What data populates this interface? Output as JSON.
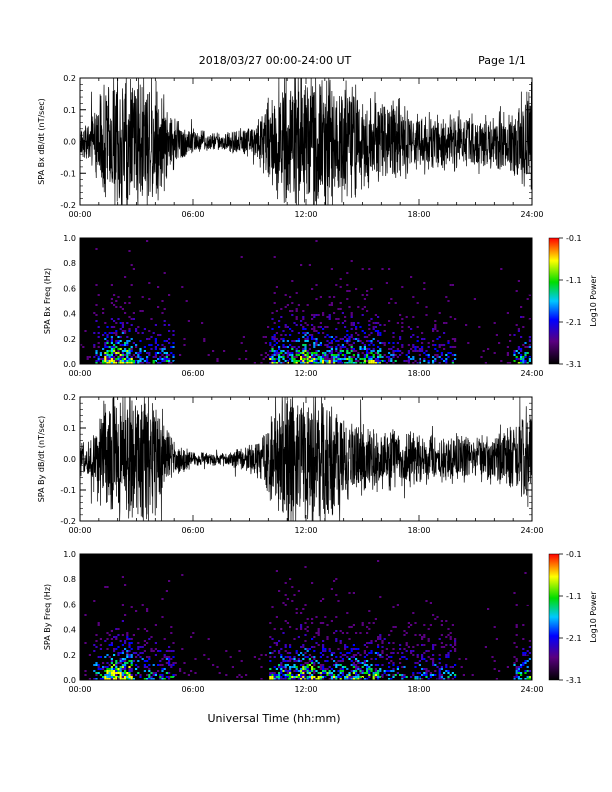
{
  "header": {
    "title": "2018/03/27  00:00-24:00 UT",
    "page": "Page 1/1"
  },
  "footer": {
    "xlabel": "Universal Time (hh:mm)"
  },
  "chart_data": [
    {
      "type": "line",
      "ylabel": "SPA Bx dB/dt (nT/sec)",
      "ylim": [
        -0.2,
        0.2
      ],
      "yticks": [
        "0.2",
        "0.1",
        "0.0",
        "-0.1",
        "-0.2"
      ],
      "xlim_hours": [
        0,
        24
      ],
      "xticks": [
        "00:00",
        "06:00",
        "12:00",
        "18:00",
        "24:00"
      ],
      "envelope": {
        "hours": [
          0,
          0.5,
          1,
          1.5,
          2,
          2.5,
          3,
          3.5,
          4,
          4.5,
          5,
          6,
          7,
          8,
          9,
          9.5,
          10,
          10.5,
          11,
          11.5,
          12,
          12.5,
          13,
          13.5,
          14,
          14.5,
          15,
          15.5,
          16,
          16.5,
          17,
          18,
          19,
          20,
          21,
          22,
          23,
          23.5,
          24
        ],
        "amplitude": [
          0.05,
          0.07,
          0.16,
          0.25,
          0.25,
          0.25,
          0.25,
          0.25,
          0.25,
          0.16,
          0.09,
          0.05,
          0.03,
          0.04,
          0.06,
          0.09,
          0.15,
          0.2,
          0.25,
          0.25,
          0.25,
          0.25,
          0.25,
          0.25,
          0.22,
          0.2,
          0.18,
          0.17,
          0.16,
          0.15,
          0.14,
          0.1,
          0.09,
          0.1,
          0.09,
          0.1,
          0.12,
          0.18,
          0.22
        ]
      }
    },
    {
      "type": "heatmap",
      "ylabel": "SPA Bx Freq (Hz)",
      "ylim": [
        0,
        1.0
      ],
      "yticks": [
        "1.0",
        "0.8",
        "0.6",
        "0.4",
        "0.2",
        "0.0"
      ],
      "xlim_hours": [
        0,
        24
      ],
      "xticks": [
        "00:00",
        "06:00",
        "12:00",
        "18:00",
        "24:00"
      ],
      "colorbar": {
        "label": "Log10 Power",
        "range": [
          -3.1,
          -0.1
        ],
        "ticks": [
          "-0.1",
          "-1.1",
          "-2.1",
          "-3.1"
        ]
      }
    },
    {
      "type": "line",
      "ylabel": "SPA By dB/dt (nT/sec)",
      "ylim": [
        -0.2,
        0.2
      ],
      "yticks": [
        "0.2",
        "0.1",
        "0.0",
        "-0.1",
        "-0.2"
      ],
      "xlim_hours": [
        0,
        24
      ],
      "xticks": [
        "00:00",
        "06:00",
        "12:00",
        "18:00",
        "24:00"
      ],
      "envelope": {
        "hours": [
          0,
          0.5,
          1,
          1.5,
          2,
          2.5,
          3,
          3.5,
          4,
          4.5,
          5,
          6,
          7,
          8,
          9,
          9.5,
          10,
          10.5,
          11,
          11.5,
          12,
          12.5,
          13,
          13.5,
          14,
          14.5,
          15,
          15.5,
          16,
          16.5,
          17,
          18,
          19,
          20,
          21,
          22,
          23,
          23.5,
          24
        ],
        "amplitude": [
          0.05,
          0.07,
          0.16,
          0.25,
          0.25,
          0.25,
          0.25,
          0.25,
          0.2,
          0.12,
          0.07,
          0.03,
          0.02,
          0.03,
          0.05,
          0.08,
          0.14,
          0.2,
          0.25,
          0.25,
          0.25,
          0.25,
          0.25,
          0.2,
          0.16,
          0.14,
          0.13,
          0.12,
          0.12,
          0.12,
          0.11,
          0.09,
          0.08,
          0.09,
          0.08,
          0.09,
          0.11,
          0.17,
          0.22
        ]
      }
    },
    {
      "type": "heatmap",
      "ylabel": "SPA By Freq (Hz)",
      "ylim": [
        0,
        1.0
      ],
      "yticks": [
        "1.0",
        "0.8",
        "0.6",
        "0.4",
        "0.2",
        "0.0"
      ],
      "xlim_hours": [
        0,
        24
      ],
      "xticks": [
        "00:00",
        "06:00",
        "12:00",
        "18:00",
        "24:00"
      ],
      "colorbar": {
        "label": "Log10 Power",
        "range": [
          -3.1,
          -0.1
        ],
        "ticks": [
          "-0.1",
          "-1.1",
          "-2.1",
          "-3.1"
        ]
      }
    }
  ]
}
